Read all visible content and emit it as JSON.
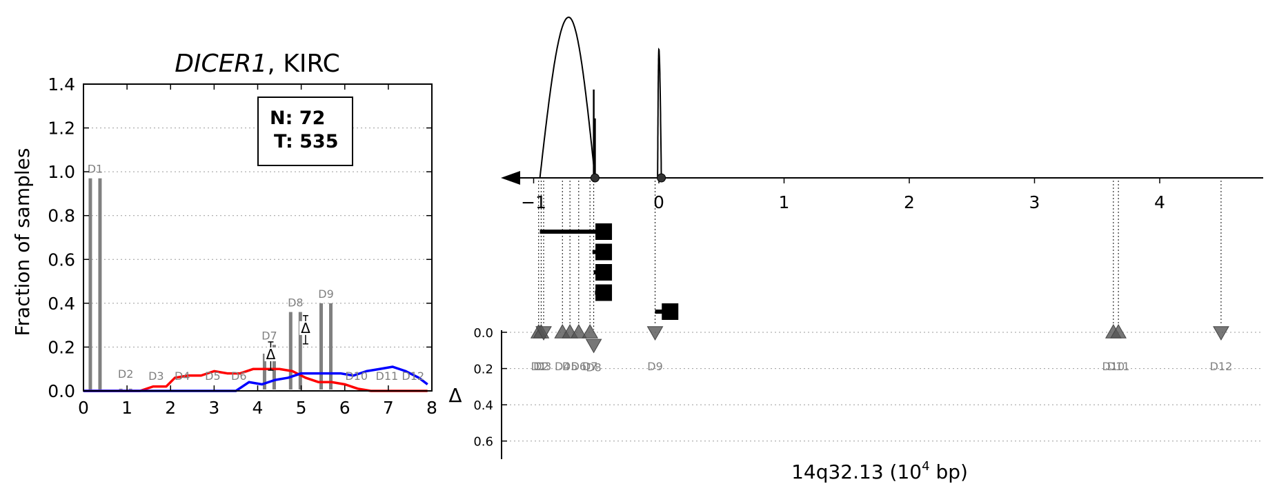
{
  "figure": {
    "left_chart": {
      "title_gene": "DICER1",
      "title_rest": ", KIRC",
      "ylabel": "Fraction of samples",
      "legend_n": "N: 72",
      "legend_t": "T: 535",
      "delta_symbol": "Δ"
    },
    "right_chart": {
      "xlabel_main": "14q32.13 (10",
      "xlabel_sup": "4",
      "xlabel_end": " bp)",
      "delta_axis_label": "Δ"
    }
  },
  "chart_data": [
    {
      "type": "bar",
      "title": "DICER1, KIRC",
      "xlabel": "",
      "ylabel": "Fraction of samples",
      "xlim": [
        0,
        8
      ],
      "ylim": [
        0,
        1.4
      ],
      "xticks": [
        0,
        1,
        2,
        3,
        4,
        5,
        6,
        7,
        8
      ],
      "yticks": [
        0.0,
        0.2,
        0.4,
        0.6,
        0.8,
        1.0,
        1.2,
        1.4
      ],
      "grid": "y-dotted",
      "legend": "top-right",
      "bars": [
        {
          "label": "D1",
          "x": 0.3,
          "normal": 0.97,
          "tumor": 0.97
        },
        {
          "label": "D2",
          "x": 1.0,
          "normal": 0.01,
          "tumor": 0.01
        },
        {
          "label": "D3",
          "x": 1.7,
          "normal": 0.0,
          "tumor": 0.0
        },
        {
          "label": "D4",
          "x": 2.3,
          "normal": 0.0,
          "tumor": 0.0
        },
        {
          "label": "D5",
          "x": 3.0,
          "normal": 0.0,
          "tumor": 0.0
        },
        {
          "label": "D6",
          "x": 3.6,
          "normal": 0.0,
          "tumor": 0.0
        },
        {
          "label": "D7",
          "x": 4.3,
          "normal": 0.17,
          "tumor": 0.21
        },
        {
          "label": "D8",
          "x": 4.9,
          "normal": 0.36,
          "tumor": 0.36
        },
        {
          "label": "D9",
          "x": 5.6,
          "normal": 0.4,
          "tumor": 0.4
        },
        {
          "label": "D10",
          "x": 6.3,
          "normal": 0.0,
          "tumor": 0.0
        },
        {
          "label": "D11",
          "x": 7.0,
          "normal": 0.0,
          "tumor": 0.0
        },
        {
          "label": "D12",
          "x": 7.6,
          "normal": 0.0,
          "tumor": 0.0
        }
      ],
      "delta_markers": [
        {
          "x": 4.3,
          "y": 0.17
        },
        {
          "x": 5.1,
          "y": 0.29
        }
      ],
      "series": [
        {
          "name": "",
          "color": "#ff0000",
          "x": [
            0.0,
            0.6,
            1.0,
            1.3,
            1.6,
            1.9,
            2.1,
            2.4,
            2.7,
            3.0,
            3.3,
            3.6,
            3.9,
            4.2,
            4.5,
            4.8,
            5.1,
            5.4,
            5.7,
            6.0,
            6.3,
            6.6,
            6.9,
            7.2,
            7.5,
            7.9
          ],
          "values": [
            0.0,
            0.0,
            0.0,
            0.0,
            0.02,
            0.02,
            0.06,
            0.07,
            0.07,
            0.09,
            0.08,
            0.08,
            0.1,
            0.1,
            0.1,
            0.09,
            0.06,
            0.04,
            0.04,
            0.03,
            0.01,
            0.0,
            0.0,
            0.0,
            0.0,
            0.0
          ]
        },
        {
          "name": "",
          "color": "#0000ff",
          "x": [
            0.0,
            1.0,
            2.0,
            3.0,
            3.5,
            3.8,
            4.1,
            4.4,
            4.7,
            5.0,
            5.3,
            5.6,
            5.9,
            6.2,
            6.5,
            6.8,
            7.1,
            7.4,
            7.7,
            7.9
          ],
          "values": [
            0.0,
            0.0,
            0.0,
            0.0,
            0.0,
            0.04,
            0.03,
            0.05,
            0.06,
            0.08,
            0.08,
            0.08,
            0.08,
            0.07,
            0.09,
            0.1,
            0.11,
            0.09,
            0.06,
            0.03
          ]
        }
      ]
    },
    {
      "type": "scatter",
      "title": "",
      "xlabel": "14q32.13 (10^4 bp)",
      "xlim": [
        -1.3,
        4.8
      ],
      "xticks": [
        -1,
        0,
        1,
        2,
        3,
        4
      ],
      "delta_ylim": [
        0.0,
        0.7
      ],
      "delta_yticks": [
        0.0,
        0.2,
        0.4,
        0.6
      ],
      "grid": "y-dotted",
      "boundary_points": [
        -0.51,
        0.02
      ],
      "arcs": [
        {
          "x_start": -0.95,
          "x_end": -0.51,
          "peak_x": -0.72,
          "height": 1.0
        },
        {
          "x_start": -0.01,
          "x_end": 0.02,
          "peak_x": 0.0,
          "height": 0.8
        }
      ],
      "spikes": [
        {
          "x": -0.52,
          "height": 0.55
        },
        {
          "x": -0.51,
          "height": 0.37
        }
      ],
      "transcripts": [
        {
          "x_start": -0.95,
          "x_end": -0.49
        },
        {
          "x_start": -0.53,
          "x_end": -0.49
        },
        {
          "x_start": -0.52,
          "x_end": -0.49
        },
        {
          "x_start": -0.51,
          "x_end": -0.49
        },
        {
          "x_start": -0.03,
          "x_end": 0.04
        }
      ],
      "points": [
        {
          "label": "D1",
          "x": -0.96,
          "delta": 0.0,
          "dir": "up"
        },
        {
          "label": "D2",
          "x": -0.94,
          "delta": 0.0,
          "dir": "up"
        },
        {
          "label": "D3",
          "x": -0.92,
          "delta": 0.0,
          "dir": "down"
        },
        {
          "label": "D4",
          "x": -0.77,
          "delta": 0.0,
          "dir": "up"
        },
        {
          "label": "D5",
          "x": -0.71,
          "delta": 0.0,
          "dir": "up"
        },
        {
          "label": "D6",
          "x": -0.64,
          "delta": 0.0,
          "dir": "up"
        },
        {
          "label": "D7",
          "x": -0.55,
          "delta": 0.0,
          "dir": "up"
        },
        {
          "label": "D8",
          "x": -0.52,
          "delta": 0.07,
          "dir": "down"
        },
        {
          "label": "D9",
          "x": -0.03,
          "delta": 0.0,
          "dir": "down"
        },
        {
          "label": "D10",
          "x": 3.63,
          "delta": 0.0,
          "dir": "up"
        },
        {
          "label": "D11",
          "x": 3.67,
          "delta": 0.0,
          "dir": "up"
        },
        {
          "label": "D12",
          "x": 4.49,
          "delta": 0.0,
          "dir": "down"
        }
      ]
    }
  ]
}
